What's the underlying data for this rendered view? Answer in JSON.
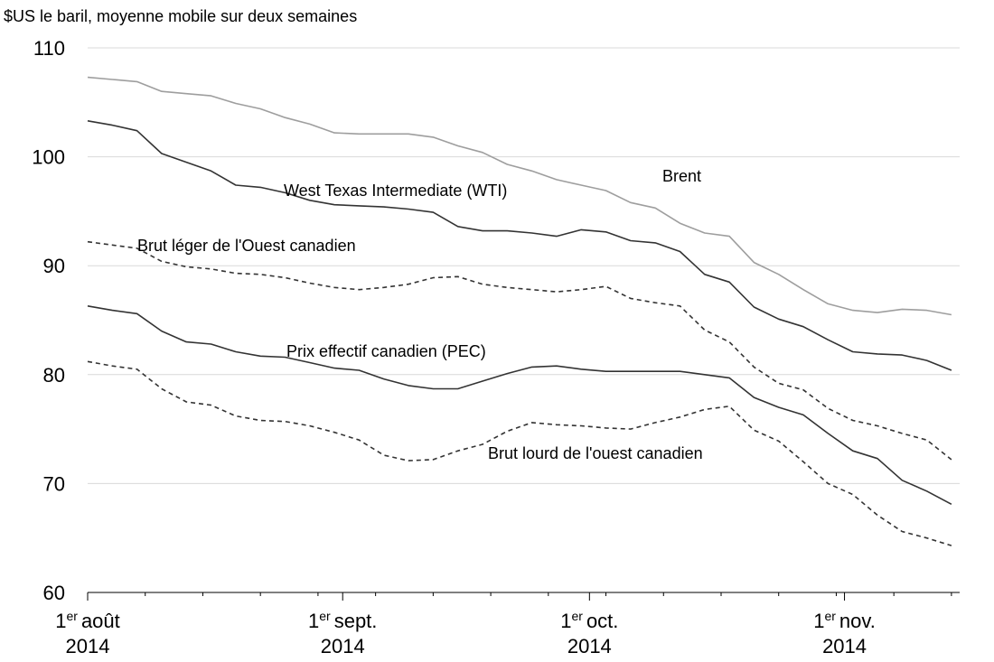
{
  "chart_data": {
    "type": "line",
    "ylabel": "$US le baril, moyenne mobile sur deux semaines",
    "ylim": [
      60,
      110
    ],
    "yticks": [
      "60",
      "70",
      "80",
      "90",
      "100",
      "110"
    ],
    "grid": "horizontal",
    "xlim": [
      "2014-08-01",
      "2014-11-15"
    ],
    "xticks": [
      {
        "date": "2014-08-01",
        "top": "août",
        "sup": "er",
        "pre": "1",
        "bottom": "2014"
      },
      {
        "date": "2014-09-01",
        "top": "sept.",
        "sup": "er",
        "pre": "1",
        "bottom": "2014"
      },
      {
        "date": "2014-10-01",
        "top": "oct.",
        "sup": "er",
        "pre": "1",
        "bottom": "2014"
      },
      {
        "date": "2014-11-01",
        "top": "nov.",
        "sup": "er",
        "pre": "1",
        "bottom": "2014"
      }
    ],
    "x": [
      "2014-08-01",
      "2014-08-04",
      "2014-08-07",
      "2014-08-10",
      "2014-08-13",
      "2014-08-16",
      "2014-08-19",
      "2014-08-22",
      "2014-08-25",
      "2014-08-28",
      "2014-08-31",
      "2014-09-03",
      "2014-09-06",
      "2014-09-09",
      "2014-09-12",
      "2014-09-15",
      "2014-09-18",
      "2014-09-21",
      "2014-09-24",
      "2014-09-27",
      "2014-09-30",
      "2014-10-03",
      "2014-10-06",
      "2014-10-09",
      "2014-10-12",
      "2014-10-15",
      "2014-10-18",
      "2014-10-21",
      "2014-10-24",
      "2014-10-27",
      "2014-10-30",
      "2014-11-02",
      "2014-11-05",
      "2014-11-08",
      "2014-11-11",
      "2014-11-14"
    ],
    "series": [
      {
        "name": "Brent",
        "style": "solid",
        "color": "#9e9e9e",
        "values": [
          107.3,
          107.1,
          106.9,
          106.0,
          105.8,
          105.6,
          104.9,
          104.4,
          103.6,
          103.0,
          102.2,
          102.1,
          102.1,
          102.1,
          101.8,
          101.0,
          100.4,
          99.3,
          98.7,
          97.9,
          97.4,
          96.9,
          95.8,
          95.3,
          93.9,
          93.0,
          92.7,
          90.3,
          89.2,
          87.8,
          86.5,
          85.9,
          85.7,
          86.0,
          85.9,
          85.5
        ]
      },
      {
        "name": "West Texas Intermediate (WTI)",
        "style": "solid",
        "color": "#333333",
        "values": [
          103.3,
          102.9,
          102.4,
          100.3,
          99.5,
          98.7,
          97.4,
          97.2,
          96.7,
          96.0,
          95.6,
          95.5,
          95.4,
          95.2,
          94.9,
          93.6,
          93.2,
          93.2,
          93.0,
          92.7,
          93.3,
          93.1,
          92.3,
          92.1,
          91.3,
          89.2,
          88.5,
          86.2,
          85.1,
          84.4,
          83.2,
          82.1,
          81.9,
          81.8,
          81.3,
          80.4
        ]
      },
      {
        "name": "Brut léger de l'Ouest canadien",
        "style": "dashed",
        "color": "#333333",
        "values": [
          92.2,
          91.9,
          91.6,
          90.4,
          89.9,
          89.7,
          89.3,
          89.2,
          88.9,
          88.4,
          88.0,
          87.8,
          88.0,
          88.3,
          88.9,
          89.0,
          88.3,
          88.0,
          87.8,
          87.6,
          87.8,
          88.1,
          87.0,
          86.6,
          86.3,
          84.1,
          83.0,
          80.7,
          79.2,
          78.6,
          76.9,
          75.8,
          75.3,
          74.6,
          74.0,
          72.2
        ]
      },
      {
        "name": "Prix effectif canadien (PEC)",
        "style": "solid",
        "color": "#333333",
        "values": [
          86.3,
          85.9,
          85.6,
          84.0,
          83.0,
          82.8,
          82.1,
          81.7,
          81.6,
          81.1,
          80.6,
          80.4,
          79.6,
          79.0,
          78.7,
          78.7,
          79.4,
          80.1,
          80.7,
          80.8,
          80.5,
          80.3,
          80.3,
          80.3,
          80.3,
          80.0,
          79.7,
          77.9,
          77.0,
          76.3,
          74.6,
          73.0,
          72.3,
          70.3,
          69.3,
          68.1
        ]
      },
      {
        "name": "Brut lourd de l'ouest canadien",
        "style": "dashed",
        "color": "#333333",
        "values": [
          81.2,
          80.8,
          80.5,
          78.7,
          77.5,
          77.2,
          76.2,
          75.8,
          75.7,
          75.3,
          74.7,
          74.0,
          72.6,
          72.1,
          72.2,
          73.0,
          73.6,
          74.8,
          75.6,
          75.4,
          75.3,
          75.1,
          75.0,
          75.6,
          76.1,
          76.8,
          77.1,
          74.9,
          73.9,
          72.0,
          70.0,
          69.0,
          67.1,
          65.6,
          65.0,
          64.3
        ]
      }
    ],
    "annotations": [
      {
        "text": "Brent",
        "series": "Brent"
      },
      {
        "text": "West Texas Intermediate (WTI)",
        "series": "West Texas Intermediate (WTI)"
      },
      {
        "text": "Brut léger de l'Ouest canadien",
        "series": "Brut léger de l'Ouest canadien"
      },
      {
        "text": "Prix effectif canadien (PEC)",
        "series": "Prix effectif canadien (PEC)"
      },
      {
        "text": "Brut lourd de l'ouest canadien",
        "series": "Brut lourd de l'ouest canadien"
      }
    ]
  }
}
